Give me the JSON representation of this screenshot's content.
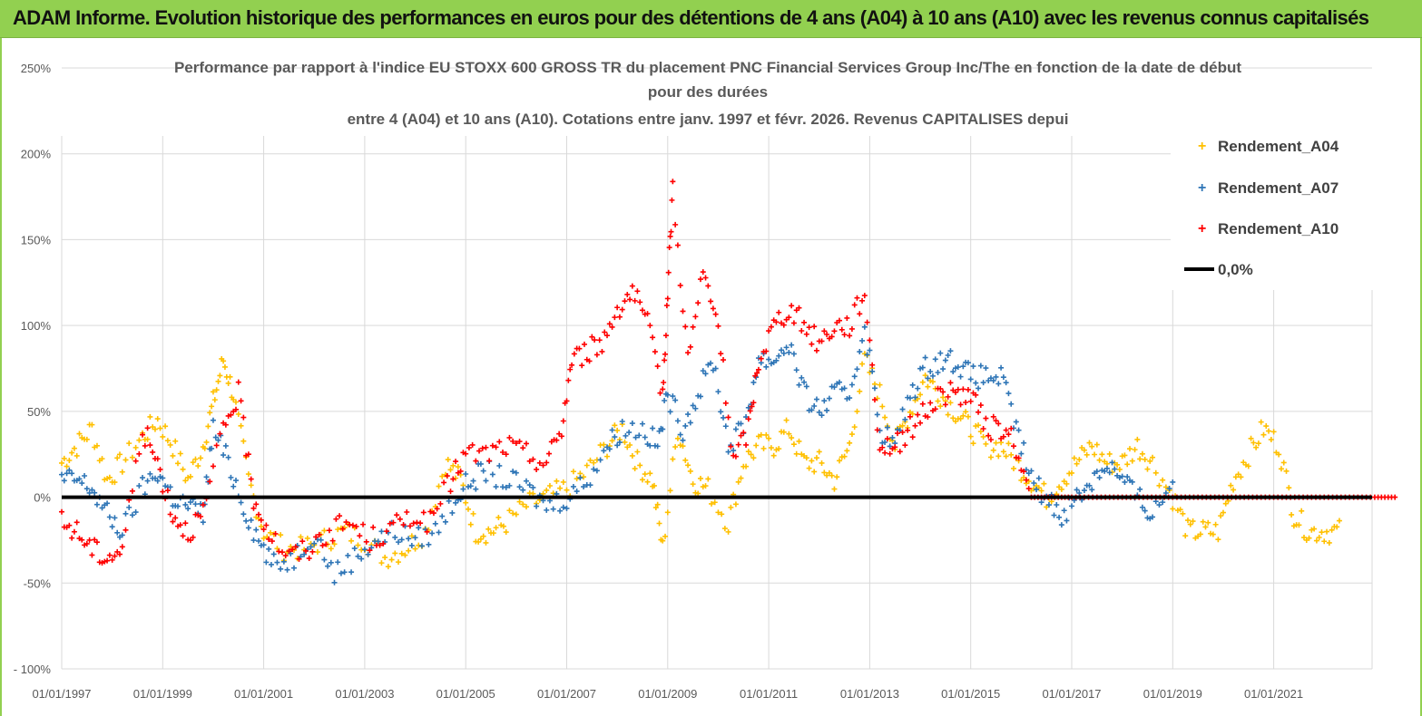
{
  "banner": {
    "text": "ADAM Informe. Evolution historique des performances en euros pour des détentions de 4 ans (A04) à 10 ans (A10) avec les revenus connus capitalisés"
  },
  "chart_data": {
    "type": "scatter",
    "title_lines": [
      "Performance par rapport à l'indice EU STOXX 600 GROSS TR  du placement PNC Financial Services  Group Inc/The en fonction de la date de début",
      "pour des durées",
      "entre 4 (A04) et 10 ans (A10). Cotations entre janv. 1997 et févr. 2026. Revenus CAPITALISES depui"
    ],
    "y_ticks": [
      "250%",
      "200%",
      "150%",
      "100%",
      "50%",
      "0%",
      "-50%",
      "- 100%"
    ],
    "x_ticks": [
      "01/01/1997",
      "01/01/1999",
      "01/01/2001",
      "01/01/2003",
      "01/01/2005",
      "01/01/2007",
      "01/01/2009",
      "01/01/2011",
      "01/01/2013",
      "01/01/2015",
      "01/01/2017",
      "01/01/2019",
      "01/01/2021"
    ],
    "ylim": [
      -100,
      250
    ],
    "xlim": [
      1997.0,
      2023.5
    ],
    "reference_line": {
      "name": "0,0%",
      "value": 0,
      "color": "#000000"
    },
    "legend": [
      {
        "name": "Rendement_A04",
        "color": "#ffc000",
        "marker": "+"
      },
      {
        "name": "Rendement_A07",
        "color": "#2e75b6",
        "marker": "+"
      },
      {
        "name": "Rendement_A10",
        "color": "#ff0000",
        "marker": "+"
      },
      {
        "name": "0,0%",
        "color": "#000000",
        "marker": "line"
      }
    ],
    "series": [
      {
        "name": "Rendement_A04",
        "color": "#ffc000",
        "points": [
          [
            1997.0,
            20
          ],
          [
            1997.3,
            30
          ],
          [
            1997.6,
            40
          ],
          [
            1997.9,
            10
          ],
          [
            1998.2,
            20
          ],
          [
            1998.6,
            35
          ],
          [
            1998.9,
            45
          ],
          [
            1999.2,
            30
          ],
          [
            1999.5,
            10
          ],
          [
            1999.8,
            30
          ],
          [
            2000.0,
            55
          ],
          [
            2000.2,
            80
          ],
          [
            2000.4,
            60
          ],
          [
            2000.7,
            10
          ],
          [
            2001.0,
            -20
          ],
          [
            2001.4,
            -30
          ],
          [
            2001.8,
            -30
          ],
          [
            2002.2,
            -25
          ],
          [
            2002.6,
            -20
          ],
          [
            2003.0,
            -25
          ],
          [
            2003.4,
            -35
          ],
          [
            2003.8,
            -30
          ],
          [
            2004.2,
            -20
          ],
          [
            2004.6,
            20
          ],
          [
            2004.9,
            10
          ],
          [
            2005.2,
            -20
          ],
          [
            2005.5,
            -20
          ],
          [
            2005.8,
            -15
          ],
          [
            2006.2,
            -5
          ],
          [
            2006.6,
            0
          ],
          [
            2007.0,
            5
          ],
          [
            2007.4,
            15
          ],
          [
            2007.8,
            30
          ],
          [
            2008.1,
            40
          ],
          [
            2008.4,
            20
          ],
          [
            2008.7,
            10
          ],
          [
            2008.9,
            -30
          ],
          [
            2009.2,
            40
          ],
          [
            2009.5,
            10
          ],
          [
            2009.8,
            5
          ],
          [
            2010.2,
            -15
          ],
          [
            2010.5,
            20
          ],
          [
            2010.8,
            30
          ],
          [
            2011.1,
            30
          ],
          [
            2011.4,
            40
          ],
          [
            2011.7,
            20
          ],
          [
            2012.0,
            20
          ],
          [
            2012.3,
            10
          ],
          [
            2012.6,
            30
          ],
          [
            2012.9,
            80
          ],
          [
            2013.2,
            60
          ],
          [
            2013.5,
            30
          ],
          [
            2013.8,
            50
          ],
          [
            2014.1,
            70
          ],
          [
            2014.4,
            60
          ],
          [
            2014.7,
            50
          ],
          [
            2015.0,
            40
          ],
          [
            2015.3,
            30
          ],
          [
            2015.6,
            30
          ],
          [
            2015.9,
            20
          ],
          [
            2016.2,
            10
          ],
          [
            2016.5,
            0
          ],
          [
            2016.8,
            10
          ],
          [
            2017.1,
            20
          ],
          [
            2017.4,
            30
          ],
          [
            2017.7,
            20
          ],
          [
            2018.0,
            20
          ],
          [
            2018.3,
            30
          ],
          [
            2018.6,
            20
          ],
          [
            2019.0,
            0
          ],
          [
            2019.3,
            -20
          ],
          [
            2019.6,
            -20
          ],
          [
            2019.9,
            -20
          ],
          [
            2020.2,
            10
          ],
          [
            2020.5,
            25
          ],
          [
            2020.8,
            40
          ],
          [
            2021.1,
            30
          ],
          [
            2021.4,
            -10
          ],
          [
            2021.7,
            -20
          ],
          [
            2022.0,
            -20
          ],
          [
            2022.3,
            -20
          ]
        ]
      },
      {
        "name": "Rendement_A07",
        "color": "#2e75b6",
        "points": [
          [
            1997.0,
            10
          ],
          [
            1997.3,
            10
          ],
          [
            1997.6,
            5
          ],
          [
            1997.9,
            -10
          ],
          [
            1998.2,
            -20
          ],
          [
            1998.6,
            5
          ],
          [
            1998.9,
            15
          ],
          [
            1999.2,
            0
          ],
          [
            1999.5,
            -5
          ],
          [
            1999.8,
            -10
          ],
          [
            2000.0,
            40
          ],
          [
            2000.3,
            20
          ],
          [
            2000.6,
            -5
          ],
          [
            2000.9,
            -25
          ],
          [
            2001.2,
            -40
          ],
          [
            2001.6,
            -35
          ],
          [
            2002.0,
            -20
          ],
          [
            2002.4,
            -45
          ],
          [
            2002.8,
            -35
          ],
          [
            2003.2,
            -25
          ],
          [
            2003.6,
            -20
          ],
          [
            2004.0,
            -25
          ],
          [
            2004.4,
            -20
          ],
          [
            2004.8,
            0
          ],
          [
            2005.1,
            10
          ],
          [
            2005.4,
            15
          ],
          [
            2005.8,
            10
          ],
          [
            2006.2,
            5
          ],
          [
            2006.6,
            -5
          ],
          [
            2007.0,
            0
          ],
          [
            2007.4,
            10
          ],
          [
            2007.8,
            30
          ],
          [
            2008.1,
            40
          ],
          [
            2008.5,
            40
          ],
          [
            2008.8,
            30
          ],
          [
            2009.0,
            60
          ],
          [
            2009.3,
            40
          ],
          [
            2009.6,
            60
          ],
          [
            2009.9,
            80
          ],
          [
            2010.2,
            30
          ],
          [
            2010.5,
            40
          ],
          [
            2010.8,
            80
          ],
          [
            2011.1,
            80
          ],
          [
            2011.4,
            90
          ],
          [
            2011.7,
            60
          ],
          [
            2012.0,
            50
          ],
          [
            2012.3,
            60
          ],
          [
            2012.6,
            60
          ],
          [
            2012.9,
            100
          ],
          [
            2013.2,
            40
          ],
          [
            2013.5,
            30
          ],
          [
            2013.8,
            60
          ],
          [
            2014.1,
            75
          ],
          [
            2014.4,
            80
          ],
          [
            2014.7,
            80
          ],
          [
            2015.0,
            70
          ],
          [
            2015.3,
            70
          ],
          [
            2015.6,
            70
          ],
          [
            2015.9,
            40
          ],
          [
            2016.2,
            10
          ],
          [
            2016.5,
            0
          ],
          [
            2016.8,
            -10
          ],
          [
            2017.1,
            0
          ],
          [
            2017.4,
            10
          ],
          [
            2017.7,
            20
          ],
          [
            2018.0,
            10
          ],
          [
            2018.3,
            0
          ],
          [
            2018.6,
            -10
          ],
          [
            2019.0,
            10
          ]
        ]
      },
      {
        "name": "Rendement_A10",
        "color": "#ff0000",
        "points": [
          [
            1997.0,
            -15
          ],
          [
            1997.3,
            -20
          ],
          [
            1997.6,
            -30
          ],
          [
            1997.9,
            -35
          ],
          [
            1998.2,
            -30
          ],
          [
            1998.6,
            40
          ],
          [
            1998.9,
            20
          ],
          [
            1999.2,
            -10
          ],
          [
            1999.5,
            -20
          ],
          [
            1999.8,
            -10
          ],
          [
            2000.2,
            40
          ],
          [
            2000.5,
            60
          ],
          [
            2000.8,
            0
          ],
          [
            2001.1,
            -20
          ],
          [
            2001.5,
            -35
          ],
          [
            2001.9,
            -30
          ],
          [
            2002.3,
            -20
          ],
          [
            2002.7,
            -15
          ],
          [
            2003.1,
            -25
          ],
          [
            2003.5,
            -20
          ],
          [
            2003.9,
            -10
          ],
          [
            2004.3,
            -15
          ],
          [
            2004.7,
            10
          ],
          [
            2005.0,
            25
          ],
          [
            2005.4,
            25
          ],
          [
            2005.8,
            30
          ],
          [
            2006.2,
            25
          ],
          [
            2006.6,
            20
          ],
          [
            2006.9,
            40
          ],
          [
            2007.1,
            80
          ],
          [
            2007.4,
            85
          ],
          [
            2007.7,
            90
          ],
          [
            2008.0,
            110
          ],
          [
            2008.3,
            120
          ],
          [
            2008.6,
            100
          ],
          [
            2008.9,
            60
          ],
          [
            2009.0,
            120
          ],
          [
            2009.1,
            180
          ],
          [
            2009.4,
            80
          ],
          [
            2009.7,
            130
          ],
          [
            2010.0,
            100
          ],
          [
            2010.3,
            20
          ],
          [
            2010.6,
            40
          ],
          [
            2010.8,
            80
          ],
          [
            2011.1,
            100
          ],
          [
            2011.4,
            110
          ],
          [
            2011.7,
            100
          ],
          [
            2012.0,
            90
          ],
          [
            2012.3,
            100
          ],
          [
            2012.6,
            100
          ],
          [
            2012.9,
            120
          ],
          [
            2013.2,
            30
          ],
          [
            2013.5,
            30
          ],
          [
            2013.8,
            40
          ],
          [
            2014.1,
            50
          ],
          [
            2014.4,
            60
          ],
          [
            2014.7,
            60
          ],
          [
            2015.0,
            60
          ],
          [
            2015.3,
            40
          ],
          [
            2015.6,
            40
          ],
          [
            2015.9,
            30
          ],
          [
            2016.2,
            0
          ],
          [
            2016.6,
            0
          ],
          [
            2017.0,
            0
          ],
          [
            2017.5,
            0
          ],
          [
            2018.0,
            0
          ],
          [
            2018.5,
            0
          ],
          [
            2019.0,
            0
          ],
          [
            2019.5,
            0
          ],
          [
            2020.0,
            0
          ],
          [
            2020.5,
            0
          ],
          [
            2021.0,
            0
          ],
          [
            2021.5,
            0
          ],
          [
            2022.0,
            0
          ],
          [
            2022.5,
            0
          ],
          [
            2023.0,
            0
          ],
          [
            2023.4,
            0
          ]
        ]
      }
    ]
  }
}
